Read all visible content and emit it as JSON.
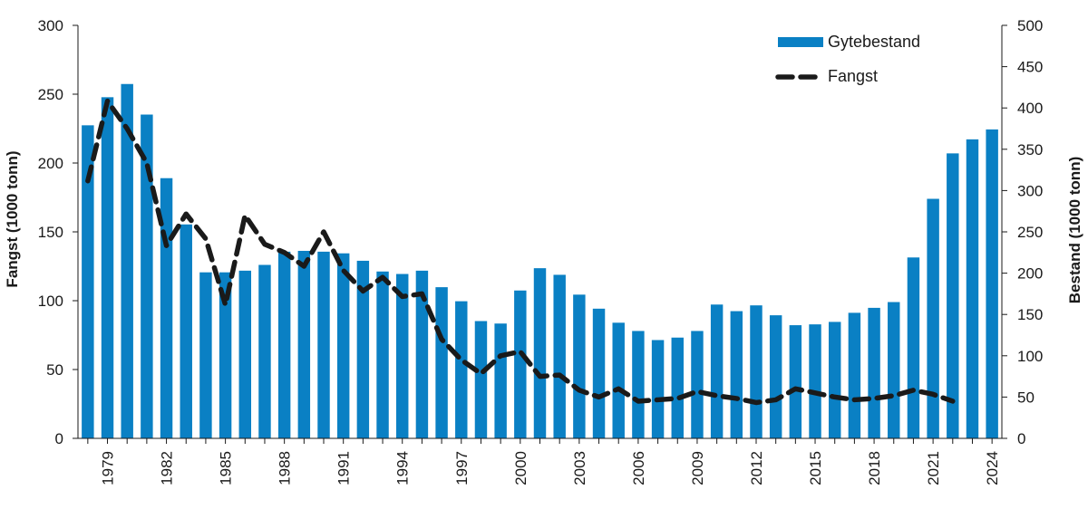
{
  "chart_data": {
    "type": "bar+line",
    "title": "",
    "x": [
      1978,
      1979,
      1980,
      1981,
      1982,
      1983,
      1984,
      1985,
      1986,
      1987,
      1988,
      1989,
      1990,
      1991,
      1992,
      1993,
      1994,
      1995,
      1996,
      1997,
      1998,
      1999,
      2000,
      2001,
      2002,
      2003,
      2004,
      2005,
      2006,
      2007,
      2008,
      2009,
      2010,
      2011,
      2012,
      2013,
      2014,
      2015,
      2016,
      2017,
      2018,
      2019,
      2020,
      2021,
      2022,
      2023,
      2024
    ],
    "x_tick_labels": [
      "1979",
      "1982",
      "1985",
      "1988",
      "1991",
      "1994",
      "1997",
      "2000",
      "2003",
      "2006",
      "2009",
      "2012",
      "2015",
      "2018",
      "2021",
      "2024"
    ],
    "series": [
      {
        "name": "Gytebestand",
        "type": "bar",
        "axis": "right",
        "color": "#0a80c4",
        "values": [
          379,
          413,
          429,
          392,
          315,
          259,
          201,
          201,
          203,
          210,
          226,
          227,
          226,
          224,
          215,
          202,
          199,
          203,
          183,
          166,
          142,
          139,
          179,
          206,
          198,
          174,
          157,
          140,
          130,
          119,
          122,
          130,
          162,
          154,
          161,
          149,
          137,
          138,
          141,
          152,
          158,
          165,
          219,
          290,
          345,
          362,
          374
        ]
      },
      {
        "name": "Fangst",
        "type": "line",
        "axis": "left",
        "color": "#1a1a1a",
        "style": "dashed",
        "values": [
          187,
          245,
          225,
          200,
          140,
          163,
          145,
          97,
          162,
          141,
          135,
          125,
          150,
          122,
          107,
          117,
          103,
          105,
          72,
          57,
          47,
          60,
          63,
          45,
          46,
          35,
          30,
          36,
          27,
          28,
          29,
          34,
          31,
          29,
          26,
          28,
          36,
          33,
          30,
          28,
          29,
          31,
          35,
          32,
          27,
          null,
          null
        ]
      }
    ],
    "y_left": {
      "label": "Fangst (1000 tonn)",
      "lim": [
        0,
        300
      ],
      "ticks": [
        0,
        50,
        100,
        150,
        200,
        250,
        300
      ]
    },
    "y_right": {
      "label": "Bestand (1000 tonn)",
      "lim": [
        0,
        500
      ],
      "ticks": [
        0,
        50,
        100,
        150,
        200,
        250,
        300,
        350,
        400,
        450,
        500
      ]
    },
    "legend": {
      "position": "top-right",
      "entries": [
        {
          "label": "Gytebestand",
          "marker": "bar"
        },
        {
          "label": "Fangst",
          "marker": "dashed-line"
        }
      ]
    },
    "grid": false
  }
}
